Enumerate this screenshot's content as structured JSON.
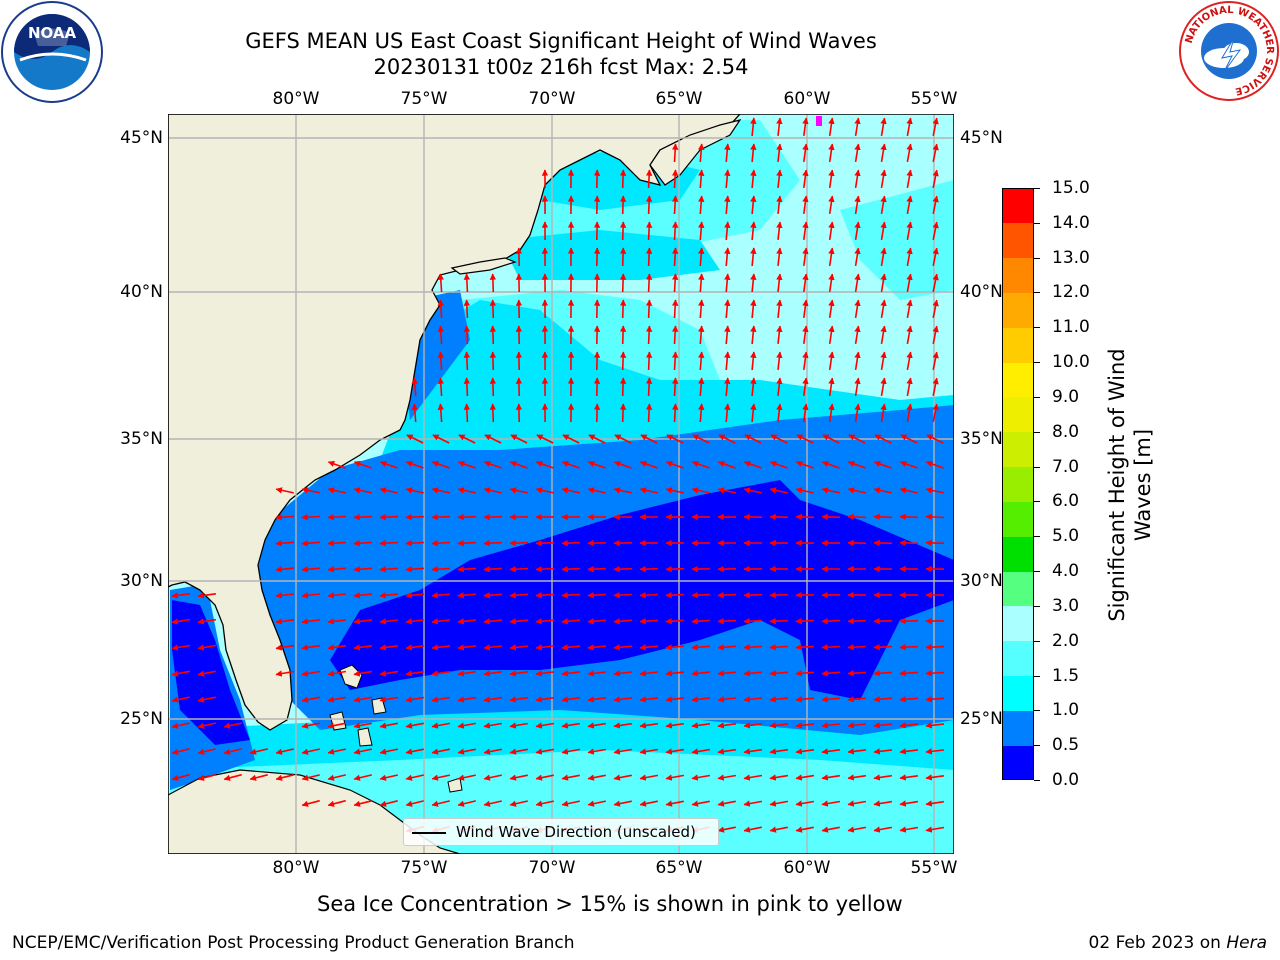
{
  "header": {
    "title_line1": "GEFS MEAN US East Coast Significant Height of Wind Waves",
    "title_line2": "20230131 t00z 216h fcst   Max: 2.54"
  },
  "logos": {
    "left": {
      "name": "noaa-logo",
      "text": "NOAA"
    },
    "right": {
      "name": "nws-logo",
      "text": "NATIONAL WEATHER SERVICE"
    }
  },
  "map": {
    "lon_ticks": [
      "80°W",
      "75°W",
      "70°W",
      "65°W",
      "60°W",
      "55°W"
    ],
    "lat_ticks": [
      "45°N",
      "40°N",
      "35°N",
      "30°N",
      "25°N"
    ],
    "lon_range": [
      -85,
      -54.2
    ],
    "lat_range": [
      20.3,
      46
    ],
    "colors": {
      "land": "#efefdc",
      "coast": "#000000",
      "grid": "#b4b4b4",
      "arrow": "#ff0000",
      "band_0_0.5": "#0000ff",
      "band_0.5_1.0": "#0080ff",
      "band_1.0_1.5": "#00e8ff",
      "band_1.5_2.0": "#5cffff",
      "band_2.0_3.0": "#aaffff",
      "sea_ice": "#ff00ff"
    },
    "legend_label": "Wind Wave Direction (unscaled)",
    "arrow_direction_note": "wave direction shown by red arrows; northward over the northern basin, westward over the southern basin"
  },
  "colorbar": {
    "label_line1": "Significant Height of Wind",
    "label_line2": "Waves [m]",
    "levels": [
      "0.0",
      "0.5",
      "1.0",
      "1.5",
      "2.0",
      "3.0",
      "4.0",
      "5.0",
      "6.0",
      "7.0",
      "8.0",
      "9.0",
      "10.0",
      "11.0",
      "12.0",
      "13.0",
      "14.0",
      "15.0"
    ],
    "colors": [
      "#0000ff",
      "#0080ff",
      "#00ffff",
      "#55ffff",
      "#aaffff",
      "#55ff80",
      "#00e000",
      "#55ee00",
      "#99ee00",
      "#ccee00",
      "#eeee00",
      "#ffee00",
      "#ffcc00",
      "#ffaa00",
      "#ff8800",
      "#ff5500",
      "#ff0000"
    ]
  },
  "notes": {
    "sea_ice": "Sea Ice Concentration > 15% is shown in pink to yellow"
  },
  "footer": {
    "left": "NCEP/EMC/Verification Post Processing Product Generation Branch",
    "right_prefix": "02 Feb 2023 on ",
    "right_host": "Hera"
  }
}
